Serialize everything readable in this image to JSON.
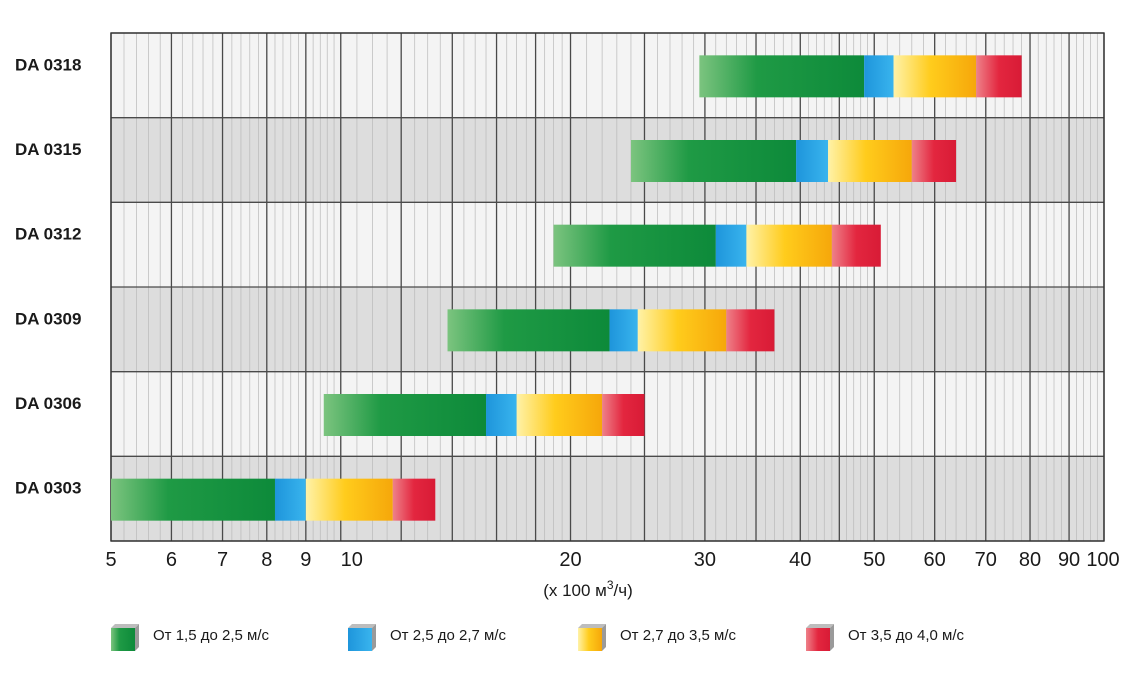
{
  "chart_data": {
    "type": "bar",
    "subtype": "horizontal-range-segmented",
    "title": "",
    "xscale": "log",
    "xlim": [
      5,
      100
    ],
    "xticks": [
      "5",
      "6",
      "7",
      "8",
      "9",
      "10",
      "20",
      "30",
      "40",
      "50",
      "60",
      "70",
      "80",
      "90",
      "100"
    ],
    "xlabel_prefix": "(x 100 м",
    "xlabel_sup": "3",
    "xlabel_suffix": "/ч)",
    "rows": [
      {
        "label": "DA 0318",
        "segments": [
          29.5,
          48.5,
          53,
          68,
          78
        ]
      },
      {
        "label": "DA 0315",
        "segments": [
          24,
          39.5,
          43.5,
          56,
          64
        ]
      },
      {
        "label": "DA 0312",
        "segments": [
          19,
          31,
          34,
          44,
          51
        ]
      },
      {
        "label": "DA 0309",
        "segments": [
          13.8,
          22.5,
          24.5,
          32,
          37
        ]
      },
      {
        "label": "DA 0306",
        "segments": [
          9.5,
          15.5,
          17,
          22,
          25
        ]
      },
      {
        "label": "DA 0303",
        "segments": [
          5,
          8.2,
          9,
          11.7,
          13.3
        ]
      }
    ],
    "legend": [
      {
        "prefix": "От",
        "text": "1,5 до 2,5 м/с",
        "color": "#16923c"
      },
      {
        "prefix": "От",
        "text": "2,5 до 2,7 м/с",
        "color": "#2aa3e0"
      },
      {
        "prefix": "От",
        "text": "2,7 до 3,5 м/с",
        "color": "#ffc21a"
      },
      {
        "prefix": "От",
        "text": "3,5 до 4,0 м/с",
        "color": "#e3263f"
      }
    ]
  }
}
